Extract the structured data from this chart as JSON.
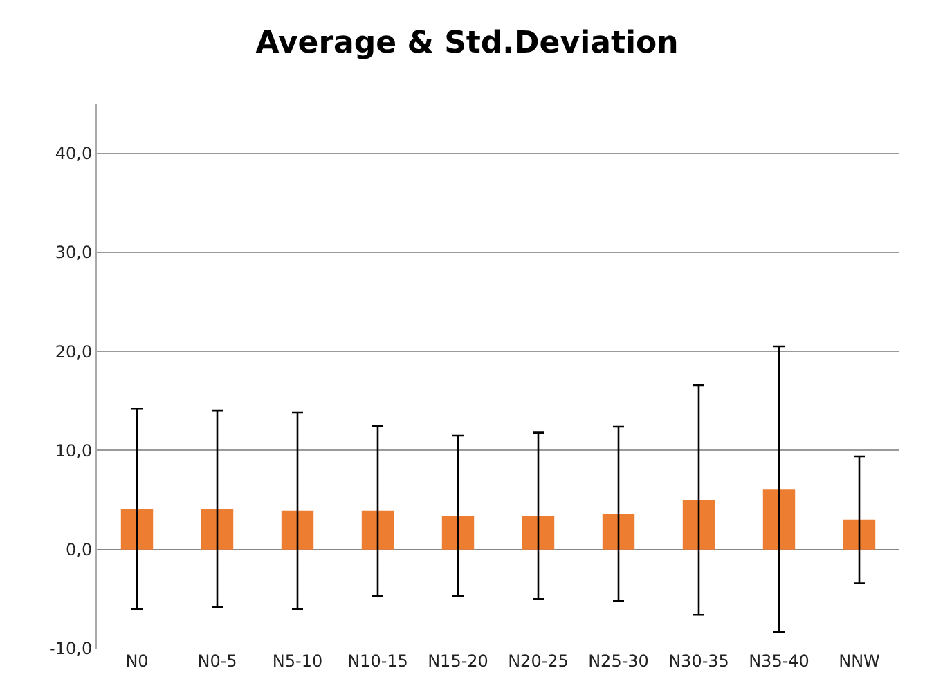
{
  "chart_data": {
    "type": "bar",
    "title": "Average & Std.Deviation",
    "categories": [
      "N0",
      "N0-5",
      "N5-10",
      "N10-15",
      "N15-20",
      "N20-25",
      "N25-30",
      "N30-35",
      "N35-40",
      "NNW"
    ],
    "values": [
      4.1,
      4.1,
      3.9,
      3.9,
      3.4,
      3.4,
      3.6,
      5.0,
      6.1,
      3.0
    ],
    "errors": [
      10.1,
      9.9,
      9.9,
      8.6,
      8.1,
      8.4,
      8.8,
      11.6,
      14.4,
      6.4
    ],
    "color": "#ed7d31",
    "ylim": [
      -10,
      45
    ],
    "yticks": [
      {
        "value": -10,
        "label": "-10,0"
      },
      {
        "value": 0,
        "label": "0,0"
      },
      {
        "value": 10,
        "label": "10,0"
      },
      {
        "value": 20,
        "label": "20,0"
      },
      {
        "value": 30,
        "label": "30,0"
      },
      {
        "value": 40,
        "label": "40,0"
      }
    ],
    "grid": "y",
    "legend": false
  }
}
